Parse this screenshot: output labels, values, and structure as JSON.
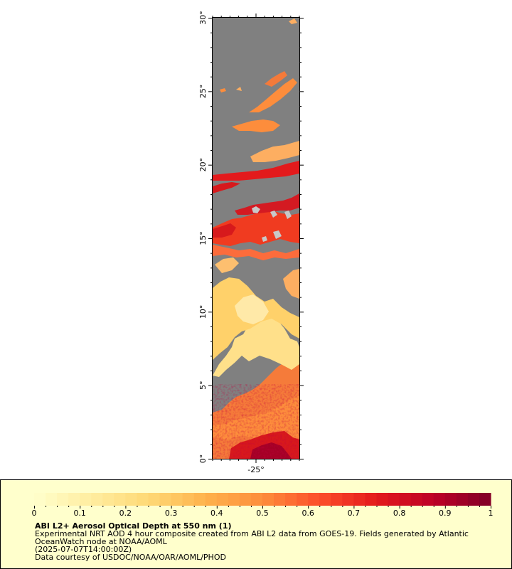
{
  "map": {
    "lat_ticks": [
      "0°",
      "5°",
      "10°",
      "15°",
      "20°",
      "25°",
      "30°"
    ],
    "lon_ticks": [
      "-25°"
    ],
    "colors": {
      "no_data": "#808080",
      "land": "#c8c8c8",
      "frame": "#000000"
    }
  },
  "legend": {
    "title": "ABI L2+ Aerosol Optical Depth at 550 nm (1)",
    "description_line1": "Experimental NRT AOD 4 hour composite created from ABI L2 data from GOES-19. Fields generated by Atlantic",
    "description_line2": "OceanWatch node at NOAA/AOML",
    "timestamp": "(2025-07-07T14:00:00Z)",
    "credit": "Data courtesy of USDOC/NOAA/OAR/AOML/PHOD",
    "tick_labels": [
      "0",
      "0.1",
      "0.2",
      "0.3",
      "0.4",
      "0.5",
      "0.6",
      "0.7",
      "0.8",
      "0.9",
      "1"
    ],
    "range": [
      0,
      1
    ],
    "palette": [
      "#ffffcc",
      "#ffeda0",
      "#fed976",
      "#feb24c",
      "#fd8d3c",
      "#fc4e2a",
      "#e31a1c",
      "#bd0026",
      "#800026"
    ]
  }
}
